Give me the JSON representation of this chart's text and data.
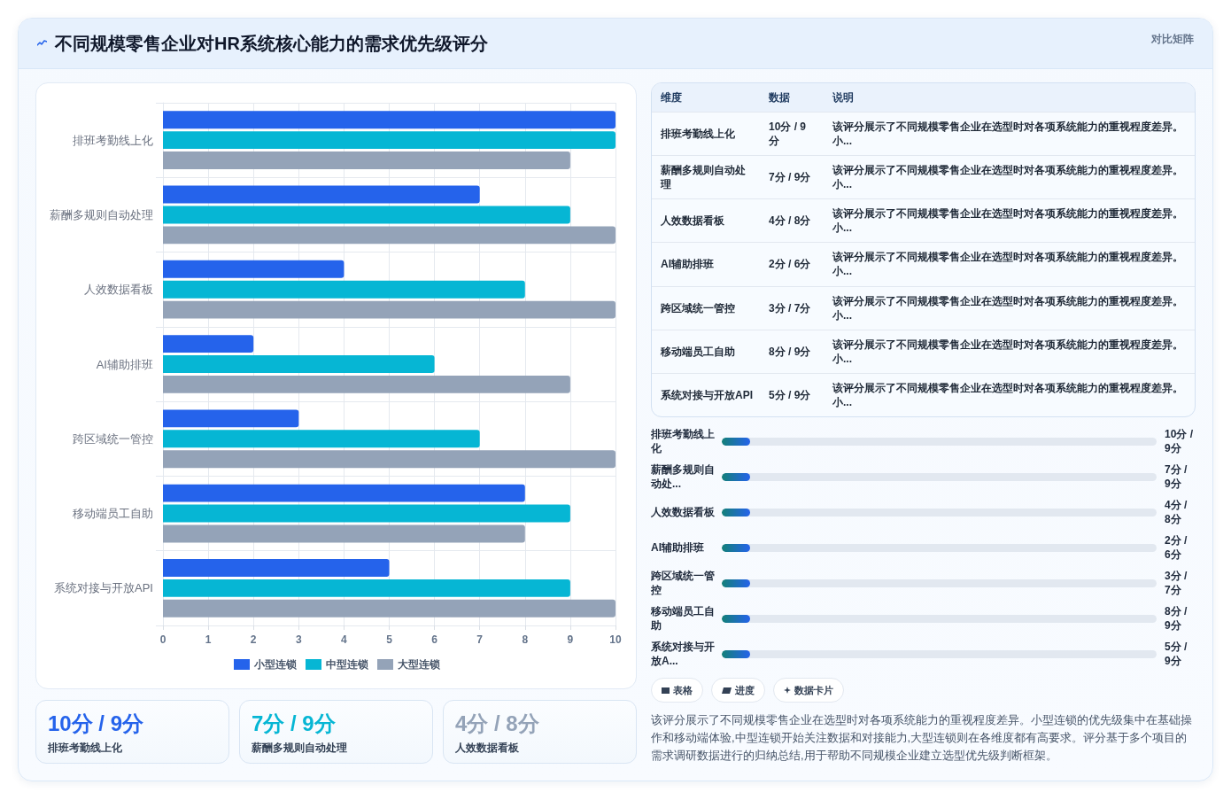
{
  "chart_data": [
    {
      "type": "bar",
      "orientation": "horizontal",
      "title": "不同规模零售企业对HR系统核心能力的需求优先级评分",
      "annotations": [
        "对比矩阵"
      ],
      "categories": [
        "排班考勤线上化",
        "薪酬多规则自动处理",
        "人效数据看板",
        "AI辅助排班",
        "跨区域统一管控",
        "移动端员工自助",
        "系统对接与开放API"
      ],
      "series": [
        {
          "name": "小型连锁",
          "color": "#2563eb",
          "values": [
            10,
            7,
            4,
            2,
            3,
            8,
            5
          ]
        },
        {
          "name": "中型连锁",
          "color": "#06b6d4",
          "values": [
            10,
            9,
            8,
            6,
            7,
            9,
            9
          ]
        },
        {
          "name": "大型连锁",
          "color": "#94a3b8",
          "values": [
            9,
            10,
            10,
            9,
            10,
            8,
            10
          ]
        }
      ],
      "xlim": [
        0,
        10
      ],
      "xticks": [
        0,
        1,
        2,
        3,
        4,
        5,
        6,
        7,
        8,
        9,
        10
      ],
      "grid": true,
      "legend": "bottom"
    },
    {
      "type": "other",
      "annotations": [
        "维度",
        "数据",
        "说明",
        "排班考勤线上化",
        "10分 / 9分",
        "该评分展示了不同规模零售企业在选型时对各项系统能力的重视程度差异。小...",
        "薪酬多规则自动处理",
        "7分 / 9分",
        "该评分展示了不同规模零售企业在选型时对各项系统能力的重视程度差异。小...",
        "人效数据看板",
        "4分 / 8分",
        "该评分展示了不同规模零售企业在选型时对各项系统能力的重视程度差异。小...",
        "AI辅助排班",
        "2分 / 6分",
        "该评分展示了不同规模零售企业在选型时对各项系统能力的重视程度差异。小...",
        "跨区域统一管控",
        "3分 / 7分",
        "该评分展示了不同规模零售企业在选型时对各项系统能力的重视程度差异。小...",
        "移动端员工自助",
        "8分 / 9分",
        "该评分展示了不同规模零售企业在选型时对各项系统能力的重视程度差异。小...",
        "系统对接与开放API",
        "5分 / 9分",
        "该评分展示了不同规模零售企业在选型时对各项系统能力的重视程度差异。小..."
      ]
    },
    {
      "type": "other",
      "annotations": [
        "排班考勤线上化",
        "10分 / 9分",
        "薪酬多规则自动处...",
        "7分 / 9分",
        "人效数据看板",
        "4分 / 8分",
        "AI辅助排班",
        "2分 / 6分",
        "跨区域统一管控",
        "3分 / 7分",
        "移动端员工自助",
        "8分 / 9分",
        "系统对接与开放A...",
        "5分 / 9分"
      ]
    },
    {
      "type": "other",
      "annotations": [
        "表格",
        "进度",
        "数据卡片",
        "该评分展示了不同规模零售企业在选型时对各项系统能力的重视程度差异。小型连锁的优先级集中在基础操作和移动端体验,中型连锁开始关注数据和对接能力,大型连锁则在各维度都有高要求。评分基于多个项目的需求调研数据进行的归纳总结,用于帮助不同规模企业建立选型优先级判断框架。"
      ]
    },
    {
      "type": "other",
      "annotations": [
        "10分 / 9分",
        "排班考勤线上化",
        "7分 / 9分",
        "薪酬多规则自动处理",
        "4分 / 8分",
        "人效数据看板"
      ],
      "colors": [
        "#2563eb",
        "#06b6d4",
        "#94a3b8"
      ]
    }
  ]
}
